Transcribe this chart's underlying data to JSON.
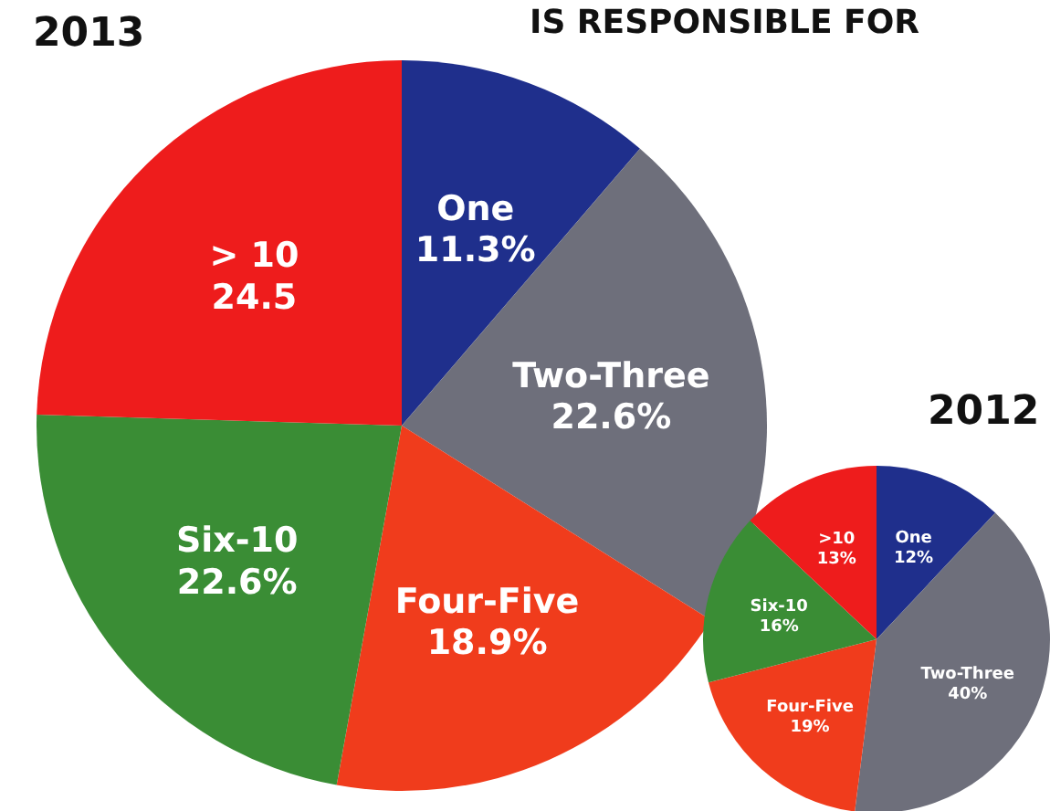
{
  "chart_data": [
    {
      "type": "pie",
      "title": "2013",
      "annotations": [
        "IS RESPONSIBLE FOR"
      ],
      "categories": [
        "One",
        "Two-Three",
        "Four-Five",
        "Six-10",
        "> 10"
      ],
      "values": [
        11.3,
        22.6,
        18.9,
        22.6,
        24.5
      ],
      "value_labels": [
        "11.3%",
        "22.6%",
        "18.9%",
        "22.6%",
        "24.5"
      ],
      "colors": [
        "#1f2f8c",
        "#6e6f7b",
        "#f03c1c",
        "#3a8d35",
        "#ee1c1c"
      ],
      "legend": false
    },
    {
      "type": "pie",
      "title": "2012",
      "categories": [
        "One",
        "Two-Three",
        "Four-Five",
        "Six-10",
        ">10"
      ],
      "values": [
        12,
        40,
        19,
        16,
        13
      ],
      "value_labels": [
        "12%",
        "40%",
        "19%",
        "16%",
        "13%"
      ],
      "colors": [
        "#1f2f8c",
        "#6e6f7b",
        "#f03c1c",
        "#3a8d35",
        "#ee1c1c"
      ],
      "legend": false
    }
  ]
}
